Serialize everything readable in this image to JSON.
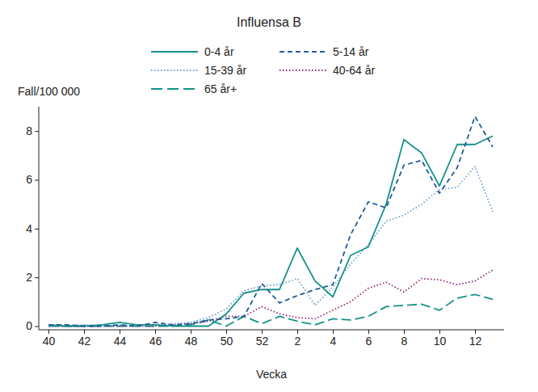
{
  "chart_data": {
    "type": "line",
    "title": "Influensa B",
    "y_label": "Fall/100 000",
    "x_label": "Vecka",
    "categories": [
      "40",
      null,
      "42",
      null,
      "44",
      null,
      "46",
      null,
      "48",
      null,
      "50",
      null,
      "52",
      null,
      "2",
      null,
      "4",
      null,
      "6",
      null,
      "8",
      null,
      "10",
      null,
      "12",
      null
    ],
    "ylim": [
      -0.15,
      9
    ],
    "yticks": [
      0,
      2,
      4,
      6,
      8
    ],
    "grid": false,
    "legend": "top",
    "series": [
      {
        "name": "0-4 år",
        "color": "#16918a",
        "line_style": "solid",
        "values": [
          0.05,
          0.0,
          0.0,
          0.05,
          0.15,
          0.05,
          0.05,
          0.0,
          0.0,
          0.0,
          0.5,
          1.35,
          1.5,
          1.5,
          3.2,
          1.85,
          1.2,
          2.9,
          3.25,
          5.0,
          7.65,
          7.1,
          5.75,
          7.45,
          7.45,
          7.8
        ]
      },
      {
        "name": "5-14 år",
        "color": "#1f5d99",
        "line_style": "dashed",
        "values": [
          0.05,
          0.05,
          0.0,
          0.0,
          0.05,
          0.0,
          0.15,
          0.05,
          0.1,
          0.25,
          0.3,
          0.4,
          1.75,
          0.95,
          1.25,
          1.5,
          1.7,
          3.75,
          5.1,
          4.85,
          6.6,
          6.8,
          5.45,
          6.5,
          8.6,
          7.35
        ]
      },
      {
        "name": "15-39 år",
        "color": "#6b9fd0",
        "line_style": "dotted",
        "values": [
          0.0,
          0.0,
          0.05,
          0.0,
          0.05,
          0.0,
          0.05,
          0.1,
          0.15,
          0.35,
          0.7,
          1.45,
          1.65,
          1.7,
          1.95,
          0.85,
          1.6,
          2.55,
          3.35,
          4.3,
          4.55,
          5.0,
          5.6,
          5.7,
          6.55,
          4.7
        ]
      },
      {
        "name": "40-64 år",
        "color": "#8c2a78",
        "line_style": "dotted",
        "values": [
          0.0,
          0.0,
          0.0,
          0.0,
          0.0,
          0.0,
          0.0,
          0.05,
          0.1,
          0.2,
          0.4,
          0.4,
          0.8,
          0.5,
          0.35,
          0.3,
          0.65,
          1.0,
          1.55,
          1.8,
          1.4,
          1.95,
          1.9,
          1.7,
          1.85,
          2.3
        ]
      },
      {
        "name": "65 år+",
        "color": "#16918a",
        "line_style": "longdash",
        "values": [
          0.0,
          0.0,
          0.0,
          0.0,
          0.0,
          0.0,
          0.0,
          0.0,
          0.05,
          0.25,
          0.0,
          0.4,
          0.1,
          0.4,
          0.2,
          0.05,
          0.3,
          0.25,
          0.4,
          0.8,
          0.85,
          0.9,
          0.65,
          1.15,
          1.3,
          1.1
        ]
      }
    ]
  }
}
